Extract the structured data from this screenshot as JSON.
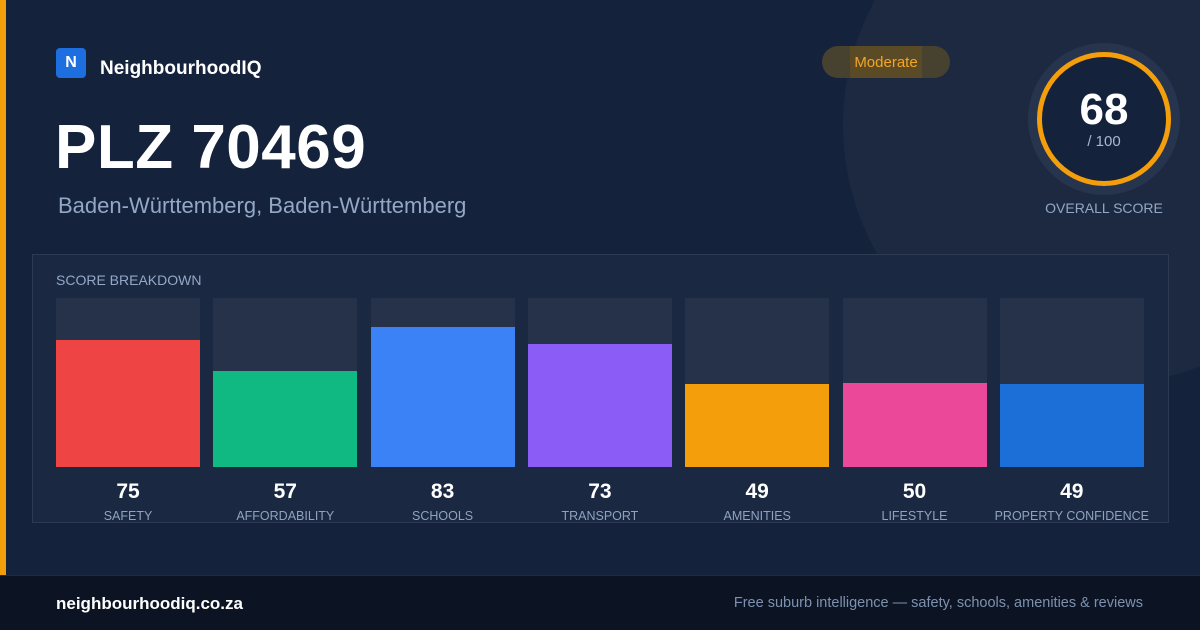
{
  "brand": {
    "logo_letter": "N",
    "name": "NeighbourhoodIQ"
  },
  "title": "PLZ 70469",
  "subtitle": "Baden-Württemberg, Baden-Württemberg",
  "badge": {
    "label": "Moderate"
  },
  "overall": {
    "value": "68",
    "max": "/ 100",
    "label": "OVERALL SCORE"
  },
  "breakdown": {
    "title": "SCORE BREAKDOWN",
    "scale_max": 100,
    "items": [
      {
        "value": 75,
        "label": "SAFETY",
        "color": "#ef4444"
      },
      {
        "value": 57,
        "label": "AFFORDABILITY",
        "color": "#10b981"
      },
      {
        "value": 83,
        "label": "SCHOOLS",
        "color": "#3b82f6"
      },
      {
        "value": 73,
        "label": "TRANSPORT",
        "color": "#8b5cf6"
      },
      {
        "value": 49,
        "label": "AMENITIES",
        "color": "#f59e0b"
      },
      {
        "value": 50,
        "label": "LIFESTYLE",
        "color": "#ec4899"
      },
      {
        "value": 49,
        "label": "PROPERTY CONFIDENCE",
        "color": "#1d6fd8"
      }
    ]
  },
  "footer": {
    "url": "neighbourhoodiq.co.za",
    "tagline": "Free suburb intelligence — safety, schools, amenities & reviews"
  },
  "colors": {
    "accent": "#f59e0b",
    "background": "#15223c",
    "brand": "#1d6fe0"
  }
}
